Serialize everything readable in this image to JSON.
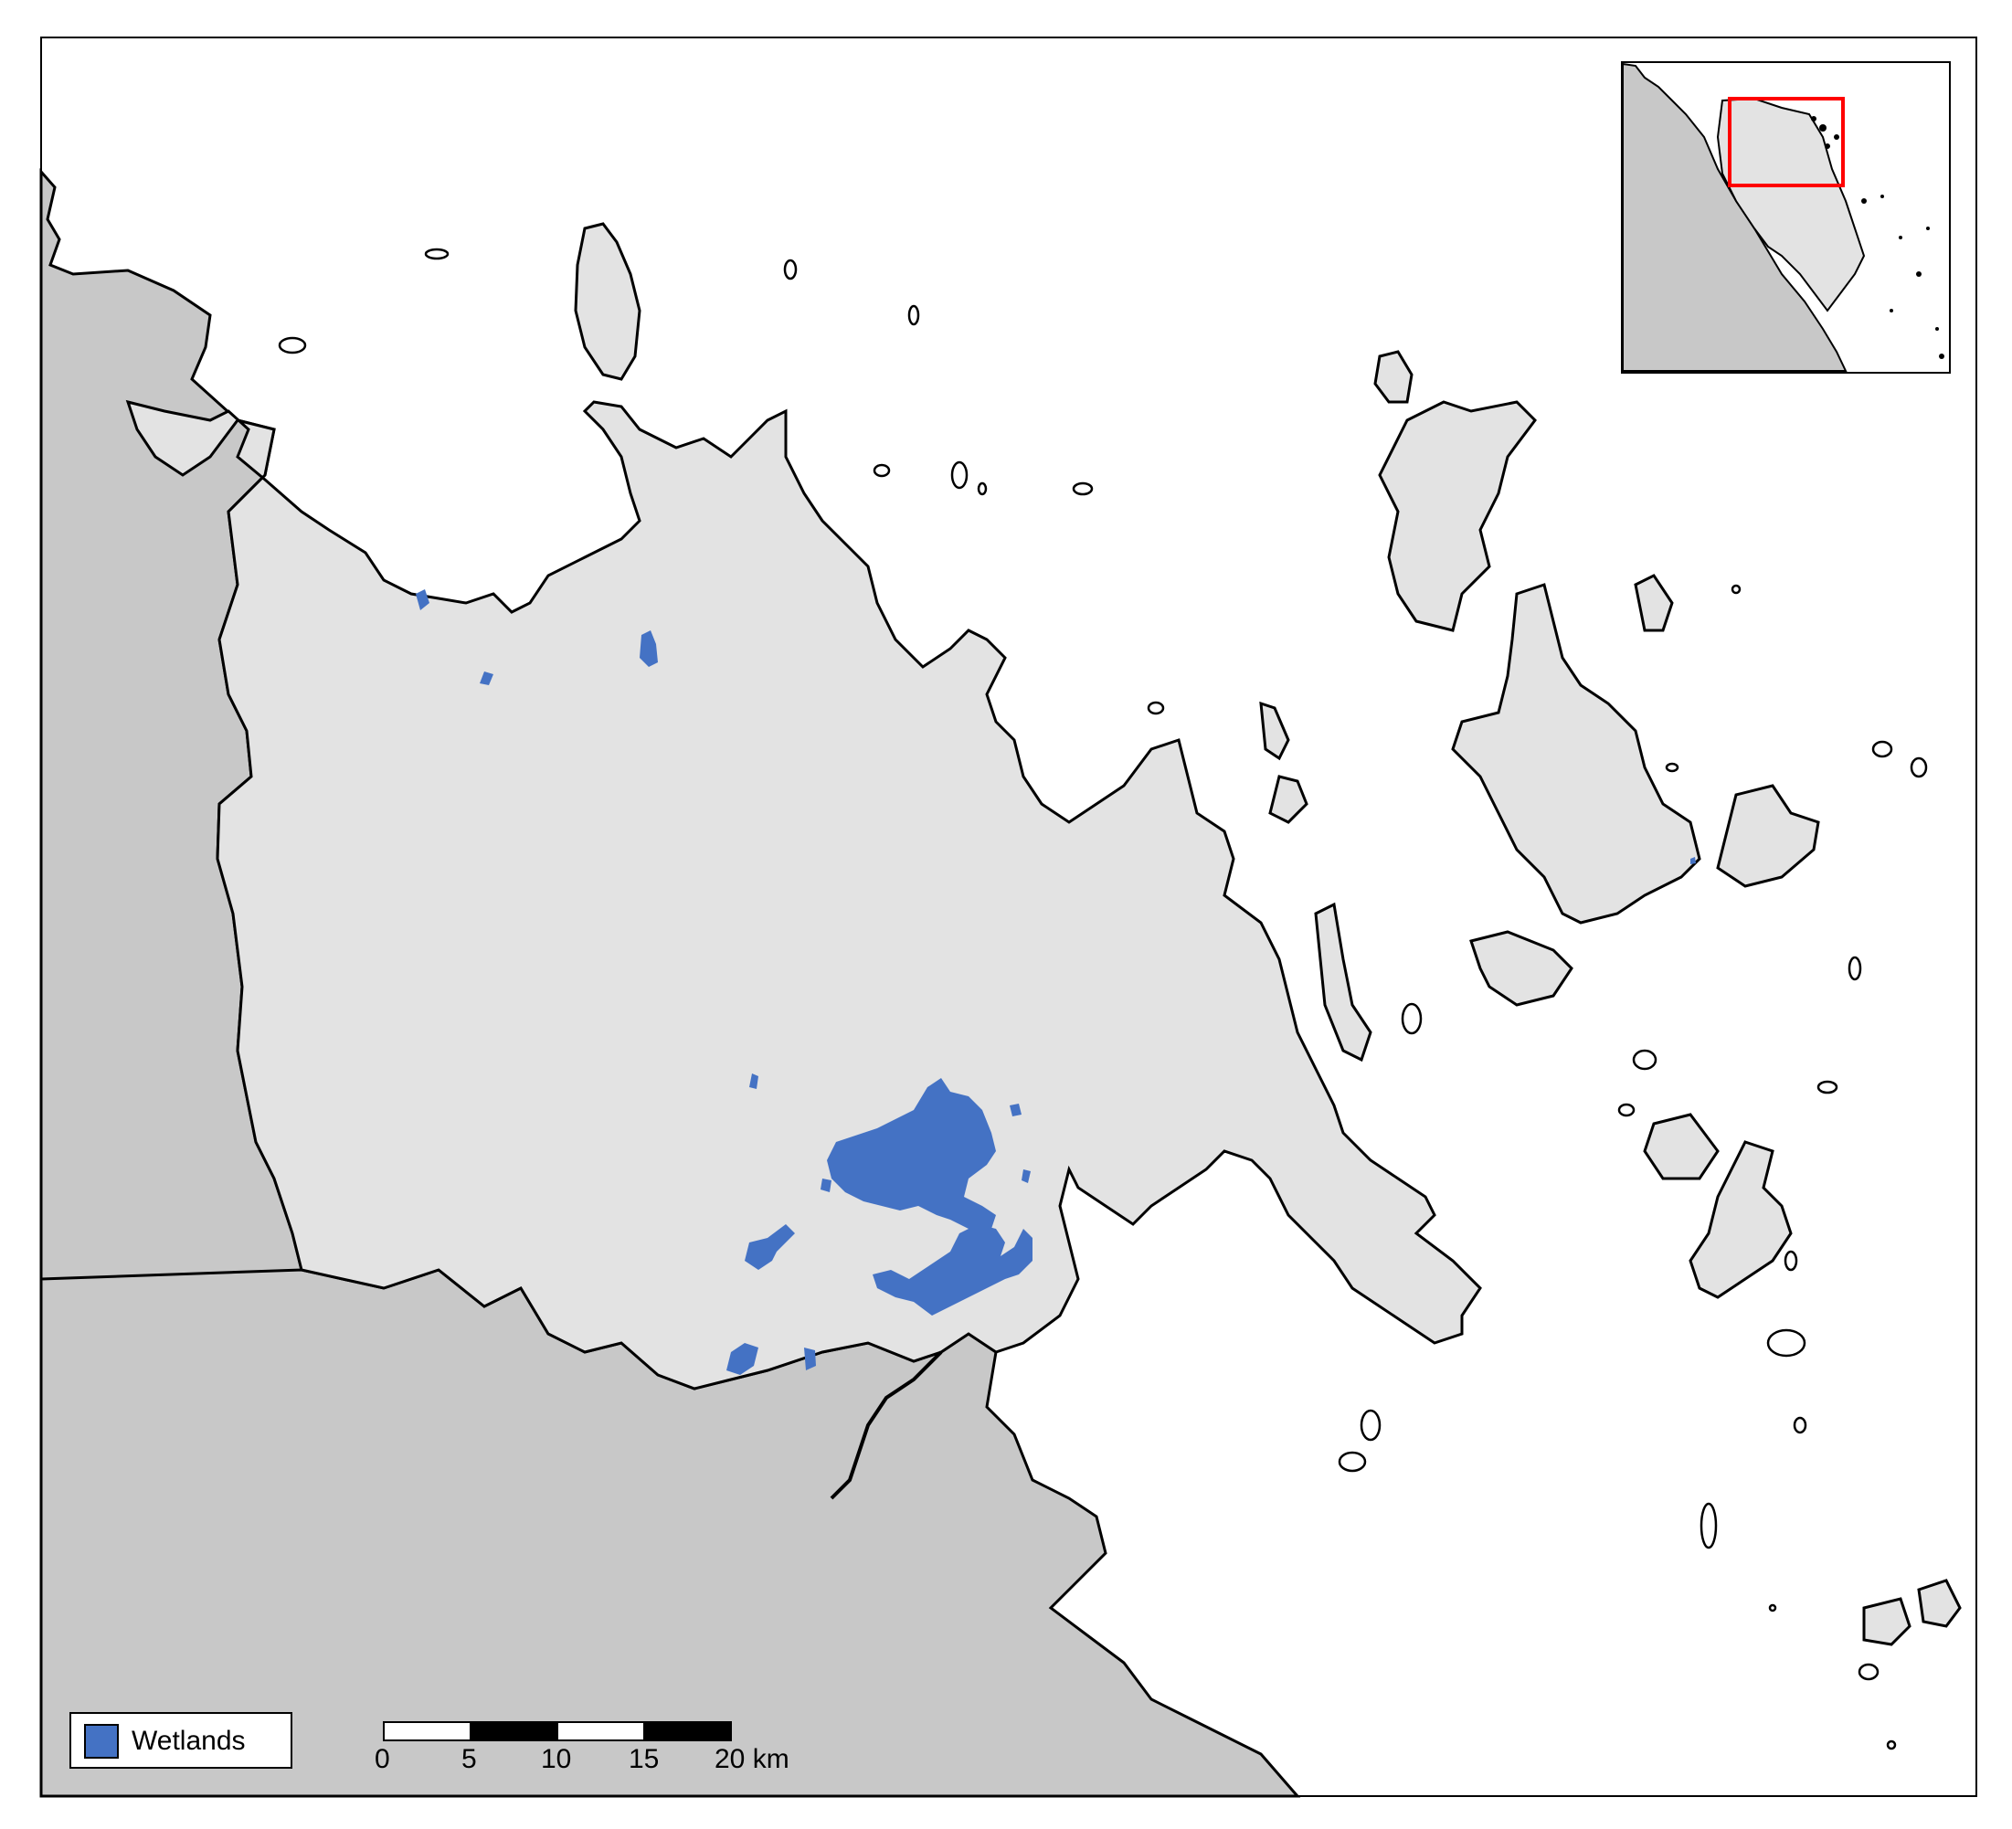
{
  "map": {
    "colors": {
      "focus_land": "#e3e3e3",
      "surrounding_land": "#c8c8c8",
      "sea": "#ffffff",
      "coastline": "#000000",
      "wetlands": "#4472c4",
      "inset_extent": "#ff0000"
    },
    "legend": {
      "items": [
        {
          "label": "Wetlands",
          "color": "#4472c4"
        }
      ]
    },
    "scale_bar": {
      "labels": [
        "0",
        "5",
        "10",
        "15",
        "20 km"
      ]
    },
    "inset": {
      "icon": "locator-map-icon"
    }
  }
}
